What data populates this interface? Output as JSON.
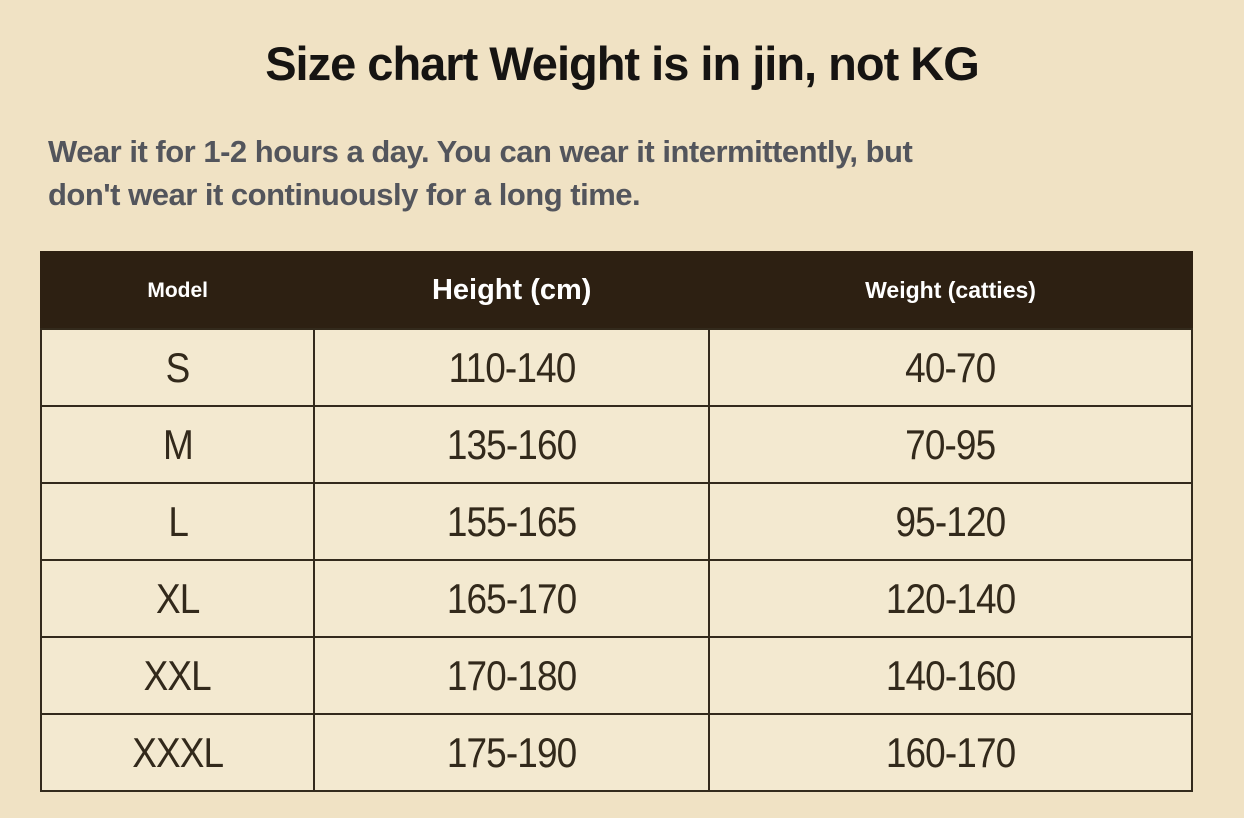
{
  "page": {
    "title": "Size chart Weight is in jin, not KG",
    "subtitle_lines": [
      "Wear it for 1-2 hours a day. You can wear it intermittently, but",
      "don't wear it continuously for a long time."
    ]
  },
  "colors": {
    "page_background": "#f0e2c4",
    "cell_background": "#f3e9d0",
    "header_background": "#2d2012",
    "header_text": "#ffffff",
    "title_text": "#161412",
    "subtitle_text": "#53555c",
    "body_text": "#32291b",
    "border": "#332a1c"
  },
  "size_table": {
    "columns": [
      "Model",
      "Height (cm)",
      "Weight (catties)"
    ],
    "rows": [
      {
        "model": "S",
        "height_cm": "110-140",
        "weight_catties": "40-70"
      },
      {
        "model": "M",
        "height_cm": "135-160",
        "weight_catties": "70-95"
      },
      {
        "model": "L",
        "height_cm": "155-165",
        "weight_catties": "95-120"
      },
      {
        "model": "XL",
        "height_cm": "165-170",
        "weight_catties": "120-140"
      },
      {
        "model": "XXL",
        "height_cm": "170-180",
        "weight_catties": "140-160"
      },
      {
        "model": "XXXL",
        "height_cm": "175-190",
        "weight_catties": "160-170"
      }
    ]
  }
}
